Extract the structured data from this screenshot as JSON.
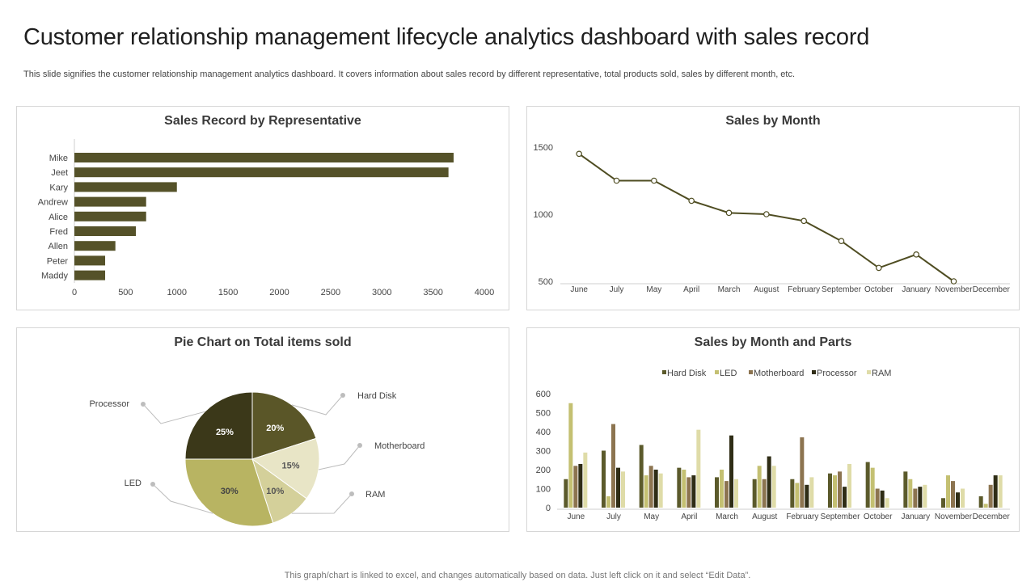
{
  "header": {
    "title": "Customer relationship management lifecycle analytics dashboard with sales record",
    "subtitle": "This slide signifies the customer relationship management analytics dashboard. It covers information about sales record by different representative, total products sold, sales by different month, etc."
  },
  "footer": {
    "note": "This graph/chart is linked to excel,  and changes automatically based on data. Just left click on it and select “Edit Data”."
  },
  "colors": {
    "dark_olive": "#555229",
    "line": "#4f4d22",
    "hard_disk": "#5b5a2b",
    "led": "#c4c072",
    "motherboard": "#8c7450",
    "processor": "#2f2d16",
    "ram": "#dfdca8"
  },
  "chart_data": [
    {
      "type": "bar",
      "orientation": "horizontal",
      "title": "Sales Record by Representative",
      "categories": [
        "Mike",
        "Jeet",
        "Kary",
        "Andrew",
        "Alice",
        "Fred",
        "Allen",
        "Peter",
        "Maddy"
      ],
      "values": [
        3700,
        3650,
        1000,
        700,
        700,
        600,
        400,
        300,
        300
      ],
      "xlim": [
        0,
        4000
      ],
      "xticks": [
        0,
        500,
        1000,
        1500,
        2000,
        2500,
        3000,
        3500,
        4000
      ],
      "xlabel": "",
      "ylabel": "",
      "grid": false
    },
    {
      "type": "line",
      "title": "Sales by Month",
      "categories": [
        "June",
        "July",
        "May",
        "April",
        "March",
        "August",
        "February",
        "September",
        "October",
        "January",
        "November",
        "December"
      ],
      "values": [
        1450,
        1250,
        1250,
        1100,
        1010,
        1000,
        950,
        800,
        600,
        700,
        500,
        null
      ],
      "ylim": [
        500,
        1500
      ],
      "yticks": [
        500,
        1000,
        1500
      ],
      "xlabel": "",
      "ylabel": "",
      "grid": false
    },
    {
      "type": "pie",
      "title": "Pie Chart on Total items sold",
      "labels": [
        "Hard Disk",
        "Motherboard",
        "RAM",
        "LED",
        "Processor"
      ],
      "values": [
        20,
        15,
        10,
        30,
        25
      ],
      "value_labels": [
        "20%",
        "15%",
        "10%",
        "30%",
        "25%"
      ]
    },
    {
      "type": "bar",
      "title": "Sales by Month and Parts",
      "categories": [
        "June",
        "July",
        "May",
        "April",
        "March",
        "August",
        "February",
        "September",
        "October",
        "January",
        "November",
        "December"
      ],
      "series": [
        {
          "name": "Hard Disk",
          "values": [
            150,
            300,
            330,
            210,
            160,
            150,
            150,
            180,
            240,
            190,
            50,
            60
          ]
        },
        {
          "name": "LED",
          "values": [
            550,
            60,
            170,
            200,
            200,
            220,
            130,
            170,
            210,
            150,
            170,
            20
          ]
        },
        {
          "name": "Motherboard",
          "values": [
            220,
            440,
            220,
            160,
            140,
            150,
            370,
            190,
            100,
            100,
            140,
            120
          ]
        },
        {
          "name": "Processor",
          "values": [
            230,
            210,
            200,
            170,
            380,
            270,
            120,
            110,
            90,
            110,
            80,
            170
          ]
        },
        {
          "name": "RAM",
          "values": [
            290,
            190,
            180,
            410,
            150,
            220,
            160,
            230,
            50,
            120,
            100,
            170
          ]
        }
      ],
      "ylim": [
        0,
        600
      ],
      "yticks": [
        0,
        100,
        200,
        300,
        400,
        500,
        600
      ],
      "legend": "top",
      "xlabel": "",
      "ylabel": "",
      "grid": false
    }
  ]
}
